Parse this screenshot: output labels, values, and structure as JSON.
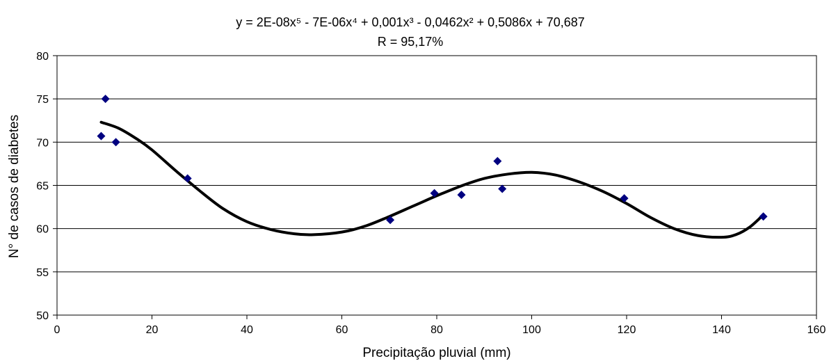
{
  "chart_data": {
    "type": "scatter",
    "title_lines": [
      "y = 2E-08x⁵ - 7E-06x⁴ + 0,001x³ - 0,0462x² + 0,5086x + 70,687",
      "R = 95,17%"
    ],
    "xlabel": "Precipitação pluvial (mm)",
    "ylabel": "N° de casos de diabetes",
    "xlim": [
      0,
      160
    ],
    "ylim": [
      50,
      80
    ],
    "x_ticks": [
      0,
      20,
      40,
      60,
      80,
      100,
      120,
      140,
      160
    ],
    "y_ticks": [
      50,
      55,
      60,
      65,
      70,
      75,
      80
    ],
    "grid": "horizontal",
    "legend": "none",
    "series": [
      {
        "kind": "points",
        "marker": "diamond",
        "color": "#000080",
        "points": [
          [
            9.3,
            70.7
          ],
          [
            10.2,
            75.0
          ],
          [
            12.4,
            70.0
          ],
          [
            27.5,
            65.8
          ],
          [
            70.2,
            61.0
          ],
          [
            79.5,
            64.1
          ],
          [
            85.2,
            63.9
          ],
          [
            92.8,
            67.8
          ],
          [
            93.8,
            64.6
          ],
          [
            119.5,
            63.5
          ],
          [
            148.8,
            61.4
          ]
        ]
      },
      {
        "kind": "trendline",
        "type": "polynomial",
        "order": 5,
        "color": "#000000",
        "x_range": [
          9.3,
          148.8
        ],
        "curve": [
          [
            9.3,
            72.3
          ],
          [
            13,
            71.6
          ],
          [
            17,
            70.3
          ],
          [
            20,
            69.1
          ],
          [
            25,
            66.7
          ],
          [
            30,
            64.4
          ],
          [
            35,
            62.3
          ],
          [
            40,
            60.8
          ],
          [
            45,
            59.9
          ],
          [
            50,
            59.4
          ],
          [
            54,
            59.3
          ],
          [
            60,
            59.6
          ],
          [
            65,
            60.3
          ],
          [
            70,
            61.4
          ],
          [
            75,
            62.6
          ],
          [
            80,
            63.8
          ],
          [
            85,
            64.9
          ],
          [
            90,
            65.8
          ],
          [
            95,
            66.3
          ],
          [
            100,
            66.5
          ],
          [
            105,
            66.2
          ],
          [
            110,
            65.4
          ],
          [
            115,
            64.3
          ],
          [
            120,
            62.9
          ],
          [
            125,
            61.3
          ],
          [
            130,
            60.0
          ],
          [
            135,
            59.2
          ],
          [
            140,
            59.0
          ],
          [
            143,
            59.3
          ],
          [
            146,
            60.2
          ],
          [
            148.8,
            61.6
          ]
        ]
      }
    ]
  }
}
